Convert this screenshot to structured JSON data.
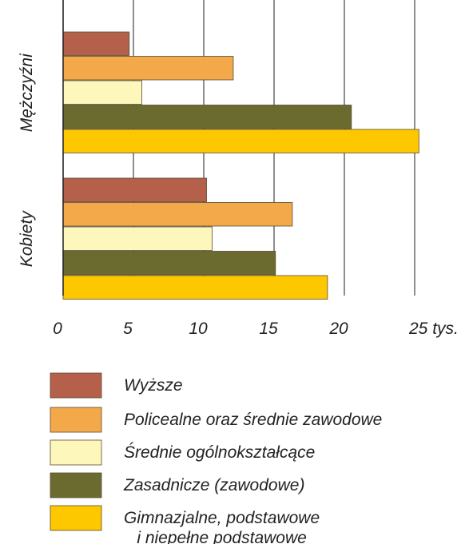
{
  "chart_data": {
    "type": "bar",
    "orientation": "horizontal",
    "categories": [
      "Mężczyźni",
      "Kobiety"
    ],
    "series": [
      {
        "name": "Wyższe",
        "color": "#b5604a",
        "values": [
          4.7,
          10.2
        ]
      },
      {
        "name": "Policealne oraz średnie zawodowe",
        "color": "#f3a94a",
        "values": [
          12.1,
          16.3
        ]
      },
      {
        "name": "Średnie ogólnokształcące",
        "color": "#fef7bb",
        "values": [
          5.6,
          10.6
        ]
      },
      {
        "name": "Zasadnicze (zawodowe)",
        "color": "#6b6b30",
        "values": [
          20.5,
          15.1
        ]
      },
      {
        "name": "Gimnazjalne, podstawowe\ni niepełne podstawowe",
        "color": "#fec800",
        "values": [
          25.3,
          18.8
        ]
      }
    ],
    "xlim": [
      0,
      25
    ],
    "xticks": [
      0,
      5,
      10,
      15,
      20,
      {
        "value": 25,
        "label": "25 tys."
      }
    ],
    "grid": true
  }
}
